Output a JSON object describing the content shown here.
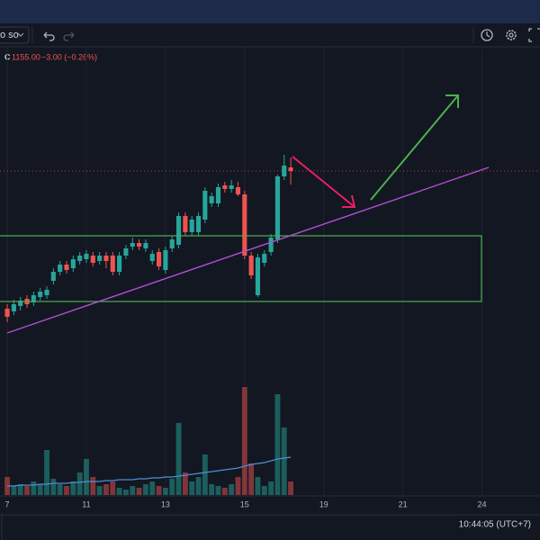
{
  "toolbar": {
    "symbol": "o so"
  },
  "status_bar": {
    "time": "10:44:05 (UTC+7)"
  },
  "chart_data": {
    "type": "candlestick",
    "legend": {
      "label": "C",
      "close": "1155.00",
      "change": "−3.00 (−0.26%)"
    },
    "x": [
      0,
      1,
      2,
      3,
      4,
      5,
      6,
      7,
      8,
      9,
      10,
      11,
      12,
      13,
      14,
      15,
      16,
      17,
      18,
      19,
      20,
      21,
      22,
      23,
      24,
      25,
      26,
      27,
      28,
      29,
      30,
      31,
      32,
      33,
      34,
      35,
      36,
      37,
      38,
      39,
      40,
      41,
      42,
      43
    ],
    "open": [
      1078.5,
      1077,
      1080,
      1084,
      1082,
      1085,
      1086,
      1094,
      1099,
      1103,
      1101,
      1105,
      1106,
      1108,
      1105,
      1108,
      1108,
      1099,
      1108,
      1113,
      1115,
      1112,
      1105,
      1110,
      1100,
      1112,
      1114,
      1130,
      1121,
      1121,
      1128,
      1137,
      1137,
      1147,
      1145,
      1146,
      1142,
      1108,
      1086,
      1104,
      1110,
      1117,
      1152,
      1157
    ],
    "high": [
      1081,
      1083.5,
      1085,
      1086,
      1088,
      1090,
      1091,
      1101,
      1105,
      1105,
      1108,
      1110,
      1111,
      1110,
      1110,
      1110,
      1110,
      1110,
      1114,
      1118,
      1117,
      1117,
      1111,
      1112,
      1113,
      1119,
      1132,
      1132,
      1130,
      1132,
      1146,
      1143,
      1148,
      1149,
      1150,
      1149,
      1144,
      1110,
      1109,
      1111,
      1120,
      1153,
      1164,
      1162.5
    ],
    "low": [
      1071,
      1075,
      1077.5,
      1079,
      1080,
      1083,
      1084,
      1092,
      1097,
      1098,
      1099,
      1103,
      1104,
      1102,
      1103,
      1101,
      1097,
      1097,
      1106,
      1111,
      1111,
      1110,
      1103,
      1100,
      1098,
      1110,
      1112,
      1119,
      1119,
      1119,
      1126,
      1135,
      1135,
      1143,
      1143,
      1141,
      1106,
      1095,
      1085,
      1102,
      1108,
      1115,
      1150,
      1147.5
    ],
    "close": [
      1074,
      1081,
      1083,
      1081,
      1086,
      1088,
      1089,
      1099,
      1103,
      1100,
      1106,
      1108,
      1109,
      1104,
      1108,
      1105,
      1099,
      1108,
      1112,
      1115,
      1113,
      1115,
      1109,
      1102,
      1111,
      1117,
      1130,
      1121,
      1128,
      1130,
      1144,
      1141,
      1146,
      1145,
      1147,
      1142,
      1108,
      1097,
      1107,
      1109,
      1118,
      1152,
      1158,
      1155
    ],
    "volume": [
      20,
      10,
      12,
      10,
      15,
      12,
      50,
      18,
      12,
      10,
      15,
      25,
      40,
      20,
      10,
      12,
      15,
      8,
      6,
      10,
      8,
      12,
      15,
      10,
      8,
      18,
      80,
      25,
      15,
      20,
      45,
      12,
      10,
      8,
      12,
      20,
      120,
      35,
      20,
      10,
      15,
      112,
      75,
      15
    ],
    "volume_ma": [
      10,
      10,
      11,
      11,
      11,
      12,
      12,
      13,
      13,
      13,
      14,
      14,
      15,
      15,
      15,
      16,
      16,
      17,
      17,
      17,
      18,
      18,
      19,
      19,
      20,
      20,
      21,
      22,
      23,
      24,
      25,
      26,
      27,
      28,
      29,
      30,
      32,
      34,
      35,
      36,
      38,
      40,
      41,
      42
    ],
    "up_color": "#26a69a",
    "down_color": "#ef5350",
    "ma_color": "#4a90d9",
    "xlim": [
      -1.1,
      80.8
    ],
    "ylim": [
      975,
      1230
    ],
    "volume_lim": [
      0,
      130
    ],
    "xticks": [
      {
        "value": 0,
        "label": "7"
      },
      {
        "value": 12,
        "label": "11"
      },
      {
        "value": 24,
        "label": "13"
      },
      {
        "value": 36,
        "label": "15"
      },
      {
        "value": 48,
        "label": "19"
      },
      {
        "value": 60,
        "label": "21"
      },
      {
        "value": 72,
        "label": "24"
      }
    ],
    "grid": true
  }
}
